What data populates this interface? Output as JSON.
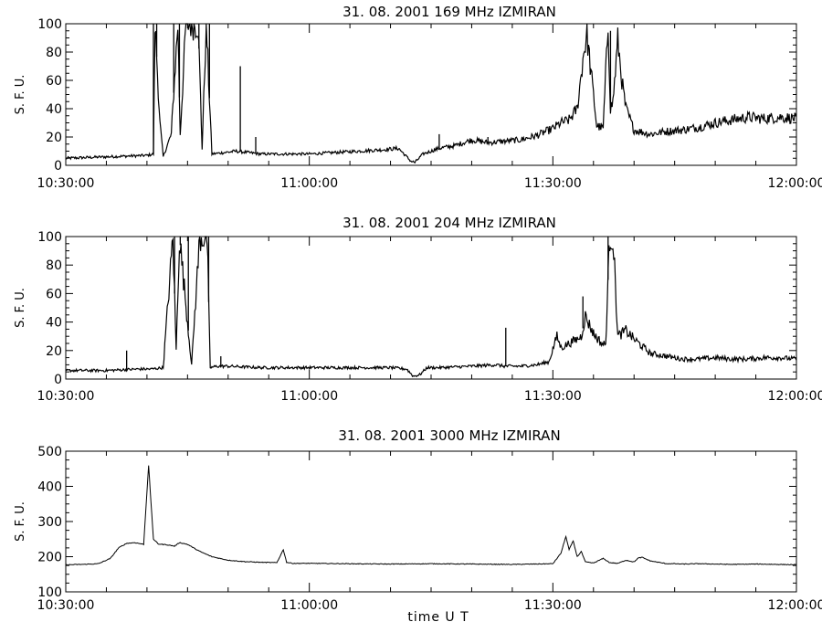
{
  "chart_data": [
    {
      "type": "line",
      "title": "31.  08. 2001    169 MHz    IZMIRAN",
      "ylabel": "S. F. U.",
      "xlabel": "",
      "xlim": [
        "10:30:00",
        "12:00:00"
      ],
      "x_tick_labels": [
        "10:30:00",
        "11:00:00",
        "11:30:00",
        "12:00:00"
      ],
      "ylim": [
        0,
        100
      ],
      "y_ticks": [
        0,
        20,
        40,
        60,
        80,
        100
      ],
      "grid": false,
      "series": [
        {
          "x_minutes": [
            0,
            5,
            10,
            10.8,
            11,
            11.6,
            12,
            13,
            13.8,
            14.1,
            14.8,
            15.7,
            16.3,
            16.8,
            17.3,
            18,
            21,
            24,
            28,
            30,
            33,
            36,
            39,
            41,
            42.5,
            43,
            44,
            46,
            48,
            50,
            52,
            54,
            56,
            58,
            60,
            61,
            62,
            63,
            63.8,
            64.2,
            64.8,
            65.4,
            66.2,
            66.8,
            67.1,
            67.4,
            68,
            68.6,
            69,
            70,
            72,
            74,
            76,
            78,
            80,
            82,
            84,
            86,
            88,
            90
          ],
          "values": [
            5,
            6,
            7,
            8,
            100,
            30,
            6,
            22,
            100,
            22,
            100,
            100,
            100,
            12,
            100,
            8,
            10,
            8,
            8,
            8,
            9,
            10,
            11,
            12,
            3,
            2,
            8,
            12,
            14,
            18,
            16,
            17,
            18,
            21,
            26,
            30,
            32,
            40,
            80,
            92,
            60,
            28,
            26,
            100,
            40,
            45,
            88,
            55,
            40,
            25,
            22,
            24,
            25,
            27,
            30,
            32,
            34,
            33,
            34,
            33
          ],
          "spikes": [
            [
              10.8,
              100
            ],
            [
              11.2,
              100
            ],
            [
              13.3,
              100
            ],
            [
              14.0,
              100
            ],
            [
              15.2,
              100
            ],
            [
              15.9,
              100
            ],
            [
              16.4,
              100
            ],
            [
              17.7,
              100
            ],
            [
              21.5,
              70
            ],
            [
              23.4,
              20
            ],
            [
              46,
              22
            ],
            [
              52,
              20
            ],
            [
              66.8,
              100
            ],
            [
              67.1,
              95
            ]
          ]
        }
      ]
    },
    {
      "type": "line",
      "title": "31.  08. 2001    204 MHz    IZMIRAN",
      "ylabel": "S. F. U.",
      "xlabel": "",
      "xlim": [
        "10:30:00",
        "12:00:00"
      ],
      "x_tick_labels": [
        "10:30:00",
        "11:00:00",
        "11:30:00",
        "12:00:00"
      ],
      "ylim": [
        0,
        100
      ],
      "y_ticks": [
        0,
        20,
        40,
        60,
        80,
        100
      ],
      "grid": false,
      "series": [
        {
          "x_minutes": [
            0,
            5,
            9,
            10.5,
            12,
            13.2,
            13.6,
            14,
            15.5,
            16.5,
            17.4,
            17.8,
            18.6,
            20,
            24,
            28,
            32,
            36,
            40,
            42,
            42.8,
            43.6,
            44.5,
            46,
            50,
            53,
            54,
            56,
            58,
            59.5,
            60.5,
            61,
            62,
            63,
            63.5,
            64,
            65,
            66,
            66.5,
            67,
            67.4,
            68,
            69,
            70,
            72,
            74,
            76,
            78,
            80,
            82,
            84,
            86,
            88,
            90
          ],
          "values": [
            6,
            6,
            7,
            7,
            8,
            100,
            20,
            100,
            10,
            100,
            100,
            8,
            9,
            9,
            8,
            8,
            8,
            8,
            8,
            7,
            2,
            3,
            8,
            8,
            9,
            10,
            9,
            9,
            10,
            12,
            30,
            22,
            25,
            28,
            30,
            44,
            32,
            25,
            24,
            100,
            100,
            30,
            34,
            28,
            18,
            16,
            14,
            14,
            15,
            14,
            14,
            15,
            15,
            14
          ],
          "spikes": [
            [
              7.5,
              20
            ],
            [
              13.4,
              100
            ],
            [
              14.1,
              100
            ],
            [
              15.1,
              100
            ],
            [
              16.8,
              100
            ],
            [
              17.6,
              100
            ],
            [
              19.1,
              16
            ],
            [
              54.2,
              36
            ],
            [
              66.8,
              100
            ],
            [
              67.2,
              100
            ],
            [
              63.7,
              58
            ]
          ]
        }
      ]
    },
    {
      "type": "line",
      "title": "31.  08. 2001    3000 MHz    IZMIRAN",
      "ylabel": "S. F. U.",
      "xlabel": "time   U T",
      "xlim": [
        "10:30:00",
        "12:00:00"
      ],
      "x_tick_labels": [
        "10:30:00",
        "11:00:00",
        "11:30:00",
        "12:00:00"
      ],
      "ylim": [
        100,
        500
      ],
      "y_ticks": [
        100,
        200,
        300,
        400,
        500
      ],
      "grid": false,
      "series": [
        {
          "x_minutes": [
            0,
            2,
            4,
            5.5,
            6.5,
            7.5,
            8.5,
            9.6,
            10.2,
            10.8,
            11.4,
            12.4,
            13.4,
            14,
            15,
            16.5,
            18,
            20,
            22,
            24,
            26,
            26.8,
            27.2,
            28,
            30,
            35,
            40,
            45,
            50,
            55,
            60,
            61,
            61.6,
            62,
            62.5,
            63,
            63.5,
            64,
            65,
            66.2,
            67,
            68,
            69,
            70,
            70.5,
            71,
            72,
            73,
            74,
            75,
            76,
            78,
            80,
            82,
            85,
            88,
            90
          ],
          "values": [
            177,
            178,
            180,
            195,
            225,
            238,
            240,
            235,
            460,
            250,
            236,
            234,
            230,
            240,
            235,
            215,
            200,
            190,
            186,
            184,
            183,
            220,
            184,
            181,
            181,
            180,
            179,
            180,
            179,
            178,
            180,
            210,
            258,
            220,
            245,
            200,
            215,
            185,
            182,
            195,
            183,
            181,
            190,
            185,
            196,
            198,
            188,
            184,
            180,
            180,
            179,
            180,
            179,
            178,
            179,
            178,
            177
          ]
        }
      ]
    }
  ]
}
